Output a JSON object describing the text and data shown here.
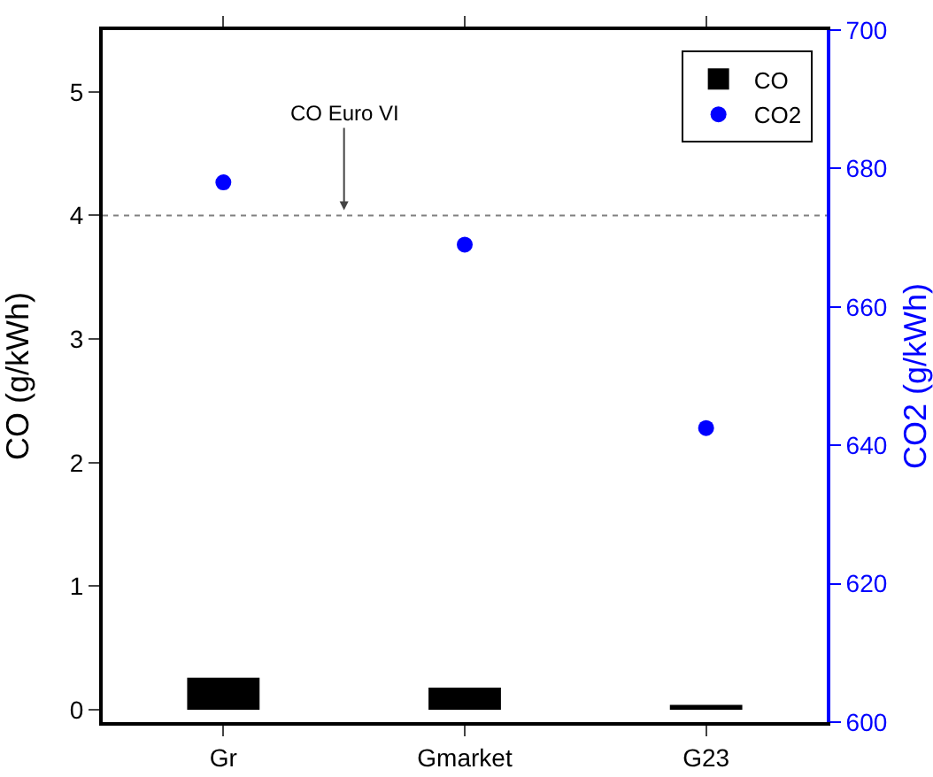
{
  "chart_data": {
    "type": "bar",
    "categories": [
      "Gr",
      "Gmarket",
      "G23"
    ],
    "ylabel": "CO (g/kWh)",
    "y2label": "CO2 (g/kWh)",
    "series": [
      {
        "name": "CO",
        "color": "#000000",
        "values": [
          0.26,
          0.18,
          0.04
        ]
      },
      {
        "name": "CO2",
        "type": "scatter",
        "axis": "y2",
        "color": "#0000ff",
        "marker": "circle",
        "values": [
          678,
          669,
          642.5
        ]
      }
    ],
    "ylim": [
      -0.1,
      5.5
    ],
    "yticks": [
      0,
      1,
      2,
      3,
      4,
      5
    ],
    "y2lim": [
      600,
      700
    ],
    "y2ticks": [
      600,
      620,
      640,
      660,
      680,
      700
    ],
    "ref_lines": [
      {
        "axis": "y",
        "value": 4,
        "label": "CO Euro VI",
        "color": "#808080",
        "line_style": "dotted"
      }
    ],
    "grid": false,
    "legend": "top right"
  }
}
